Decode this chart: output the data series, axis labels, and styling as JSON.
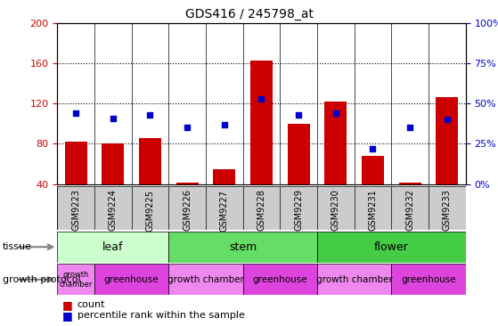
{
  "title": "GDS416 / 245798_at",
  "samples": [
    "GSM9223",
    "GSM9224",
    "GSM9225",
    "GSM9226",
    "GSM9227",
    "GSM9228",
    "GSM9229",
    "GSM9230",
    "GSM9231",
    "GSM9232",
    "GSM9233"
  ],
  "counts": [
    82,
    80,
    86,
    42,
    55,
    163,
    100,
    122,
    68,
    42,
    126
  ],
  "percentiles": [
    44,
    41,
    43,
    35,
    37,
    53,
    43,
    44,
    22,
    35,
    40
  ],
  "ylim_left": [
    40,
    200
  ],
  "ylim_right": [
    0,
    100
  ],
  "yticks_left": [
    40,
    80,
    120,
    160,
    200
  ],
  "yticks_right": [
    0,
    25,
    50,
    75,
    100
  ],
  "bar_color": "#cc0000",
  "dot_color": "#0000cc",
  "tissue_groups": [
    {
      "label": "leaf",
      "start": 0,
      "end": 3,
      "color": "#ccffcc"
    },
    {
      "label": "stem",
      "start": 3,
      "end": 7,
      "color": "#66dd66"
    },
    {
      "label": "flower",
      "start": 7,
      "end": 11,
      "color": "#44cc44"
    }
  ],
  "protocol_groups": [
    {
      "label": "growth\nchamber",
      "start": 0,
      "end": 1,
      "color": "#ee88ee"
    },
    {
      "label": "greenhouse",
      "start": 1,
      "end": 3,
      "color": "#dd44dd"
    },
    {
      "label": "growth chamber",
      "start": 3,
      "end": 5,
      "color": "#ee88ee"
    },
    {
      "label": "greenhouse",
      "start": 5,
      "end": 7,
      "color": "#dd44dd"
    },
    {
      "label": "growth chamber",
      "start": 7,
      "end": 9,
      "color": "#ee88ee"
    },
    {
      "label": "greenhouse",
      "start": 9,
      "end": 11,
      "color": "#dd44dd"
    }
  ],
  "tissue_label": "tissue",
  "protocol_label": "growth protocol",
  "legend_count": "count",
  "legend_percentile": "percentile rank within the sample",
  "axis_label_color_left": "#cc0000",
  "axis_label_color_right": "#0000cc",
  "bg_color": "#ffffff",
  "xticklabel_bg": "#cccccc",
  "sample_label_fontsize": 7,
  "bar_width": 0.6
}
